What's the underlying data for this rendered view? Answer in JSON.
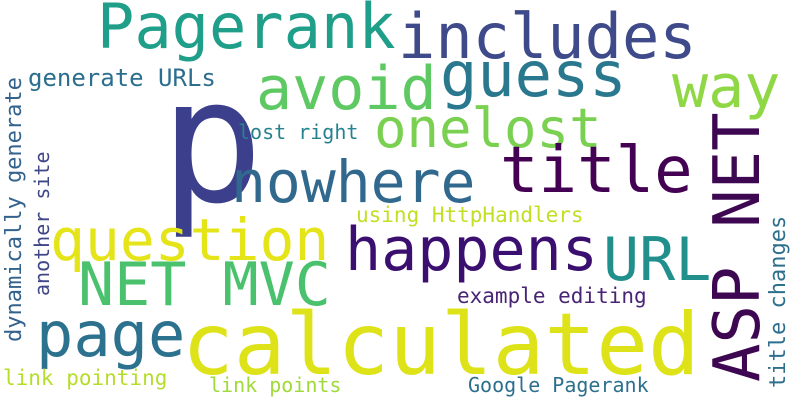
{
  "cloud": {
    "words": [
      {
        "text": "p",
        "color": "#3b3f8c"
      },
      {
        "text": "calculated",
        "color": "#dde318"
      },
      {
        "text": "Pagerank",
        "color": "#1f9e89"
      },
      {
        "text": "includes",
        "color": "#3e4a89"
      },
      {
        "text": "guess",
        "color": "#2a788e"
      },
      {
        "text": "avoid",
        "color": "#5ec962"
      },
      {
        "text": "way",
        "color": "#8fd744"
      },
      {
        "text": "onelost",
        "color": "#7ad151"
      },
      {
        "text": "nowhere",
        "color": "#31688e"
      },
      {
        "text": "title",
        "color": "#440154"
      },
      {
        "text": "question",
        "color": "#e5e419"
      },
      {
        "text": "happens",
        "color": "#3b0f6f"
      },
      {
        "text": "URL",
        "color": "#21908c"
      },
      {
        "text": "NET MVC",
        "color": "#4ac16d"
      },
      {
        "text": "page",
        "color": "#2c728e"
      },
      {
        "text": "ASP NET",
        "color": "#3e0751"
      },
      {
        "text": "generate URLs",
        "color": "#2c6e8e"
      },
      {
        "text": "lost right",
        "color": "#26828e"
      },
      {
        "text": "using HttpHandlers",
        "color": "#c2df23"
      },
      {
        "text": "example editing",
        "color": "#482475"
      },
      {
        "text": "link pointing",
        "color": "#b5de2b"
      },
      {
        "text": "link points",
        "color": "#a0da39"
      },
      {
        "text": "Google Pagerank",
        "color": "#2d708e"
      },
      {
        "text": "dynamically generate",
        "color": "#33638d"
      },
      {
        "text": "another site",
        "color": "#3f4788"
      },
      {
        "text": "title changes",
        "color": "#2e6f8e"
      }
    ]
  }
}
